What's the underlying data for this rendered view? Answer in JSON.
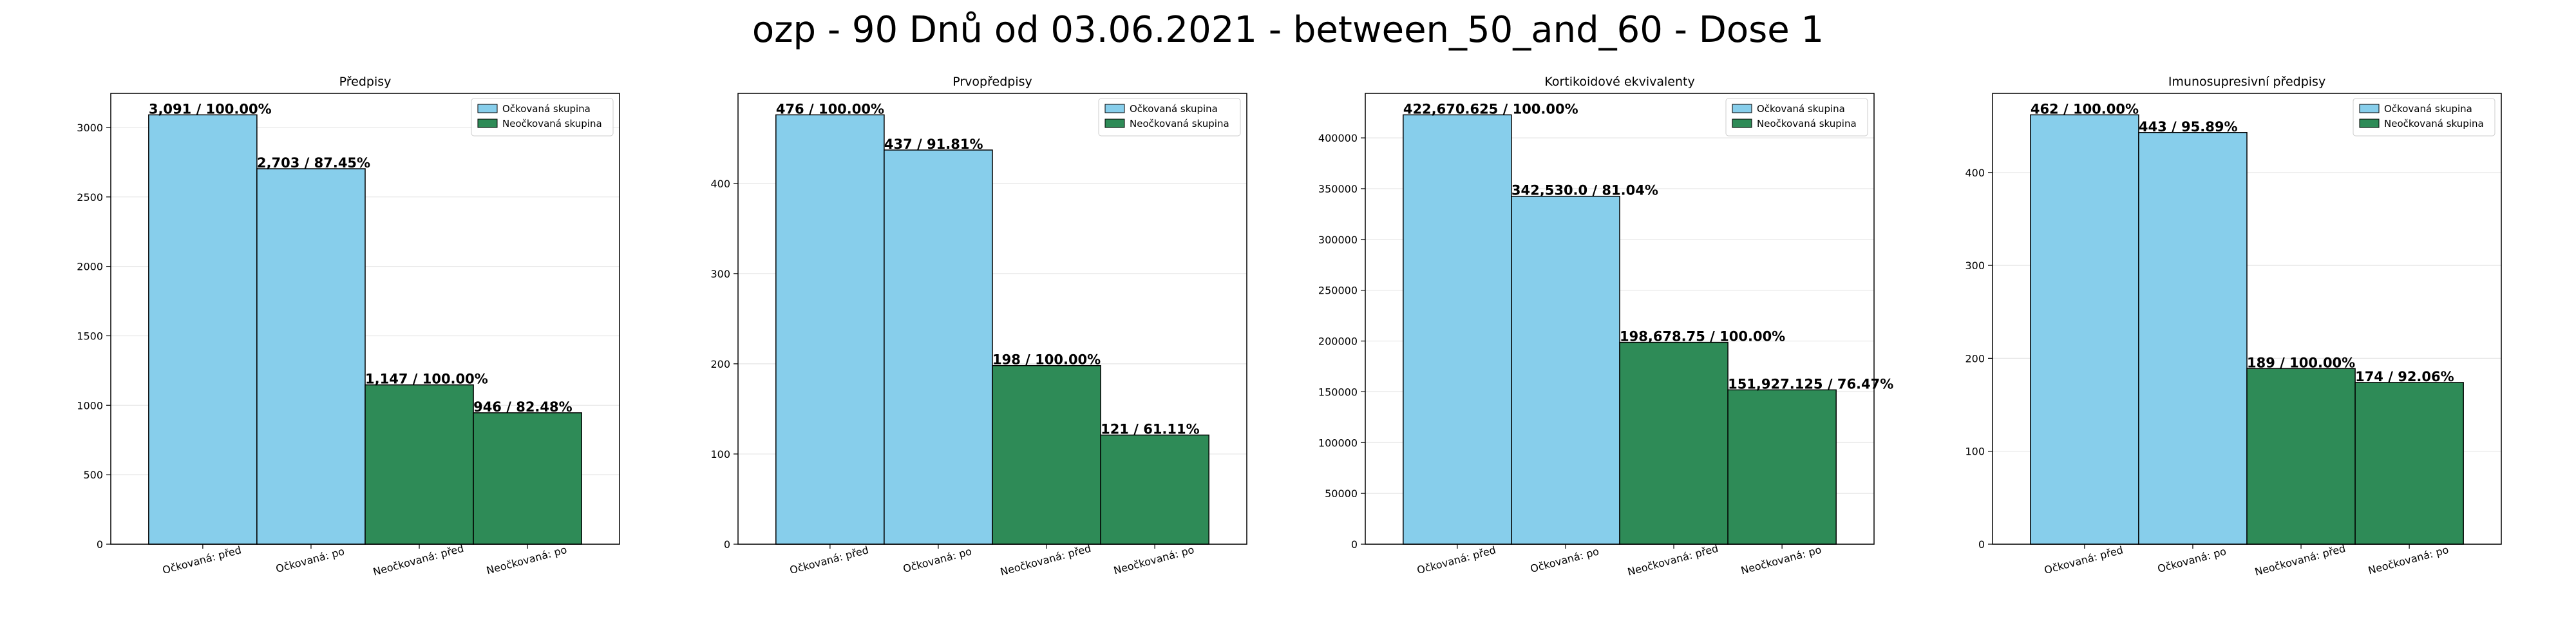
{
  "figure_title": "ozp - 90 Dnů od 03.06.2021 - between_50_and_60 - Dose 1",
  "colors": {
    "vaccinated": "#87CEEB",
    "unvaccinated": "#2E8B57",
    "edge": "#000000",
    "grid": "#e6e6e6"
  },
  "chart_data": [
    {
      "type": "bar",
      "title": "Předpisy",
      "categories": [
        "Očkovaná: před",
        "Očkovaná: po",
        "Neočkovaná: před",
        "Neočkovaná: po"
      ],
      "values": [
        3091,
        2703,
        1147,
        946
      ],
      "labels": [
        "3,091 / 100.00%",
        "2,703 / 87.45%",
        "1,147 / 100.00%",
        "946 / 82.48%"
      ],
      "bar_groups": [
        "vaccinated",
        "vaccinated",
        "unvaccinated",
        "unvaccinated"
      ],
      "ylim": [
        0,
        3245.55
      ],
      "yticks": [
        0,
        500,
        1000,
        1500,
        2000,
        2500,
        3000
      ],
      "legend": [
        "Očkovaná skupina",
        "Neočkovaná skupina"
      ],
      "legend_position": "top-right",
      "grid": "horizontal"
    },
    {
      "type": "bar",
      "title": "Prvopředpisy",
      "categories": [
        "Očkovaná: před",
        "Očkovaná: po",
        "Neočkovaná: před",
        "Neočkovaná: po"
      ],
      "values": [
        476,
        437,
        198,
        121
      ],
      "labels": [
        "476 / 100.00%",
        "437 / 91.81%",
        "198 / 100.00%",
        "121 / 61.11%"
      ],
      "bar_groups": [
        "vaccinated",
        "vaccinated",
        "unvaccinated",
        "unvaccinated"
      ],
      "ylim": [
        0,
        499.8
      ],
      "yticks": [
        0,
        100,
        200,
        300,
        400
      ],
      "legend": [
        "Očkovaná skupina",
        "Neočkovaná skupina"
      ],
      "legend_position": "top-right",
      "grid": "horizontal"
    },
    {
      "type": "bar",
      "title": "Kortikoidové ekvivalenty",
      "categories": [
        "Očkovaná: před",
        "Očkovaná: po",
        "Neočkovaná: před",
        "Neočkovaná: po"
      ],
      "values": [
        422670.625,
        342530.0,
        198678.75,
        151927.125
      ],
      "labels": [
        "422,670.625 / 100.00%",
        "342,530.0 / 81.04%",
        "198,678.75 / 100.00%",
        "151,927.125 / 76.47%"
      ],
      "bar_groups": [
        "vaccinated",
        "vaccinated",
        "unvaccinated",
        "unvaccinated"
      ],
      "ylim": [
        0,
        443804.16
      ],
      "yticks": [
        0,
        50000,
        100000,
        150000,
        200000,
        250000,
        300000,
        350000,
        400000
      ],
      "legend": [
        "Očkovaná skupina",
        "Neočkovaná skupina"
      ],
      "legend_position": "top-right",
      "grid": "horizontal"
    },
    {
      "type": "bar",
      "title": "Imunosupresivní předpisy",
      "categories": [
        "Očkovaná: před",
        "Očkovaná: po",
        "Neočkovaná: před",
        "Neočkovaná: po"
      ],
      "values": [
        462,
        443,
        189,
        174
      ],
      "labels": [
        "462 / 100.00%",
        "443 / 95.89%",
        "189 / 100.00%",
        "174 / 92.06%"
      ],
      "bar_groups": [
        "vaccinated",
        "vaccinated",
        "unvaccinated",
        "unvaccinated"
      ],
      "ylim": [
        0,
        485.1
      ],
      "yticks": [
        0,
        100,
        200,
        300,
        400
      ],
      "legend": [
        "Očkovaná skupina",
        "Neočkovaná skupina"
      ],
      "legend_position": "top-right",
      "grid": "horizontal"
    }
  ]
}
